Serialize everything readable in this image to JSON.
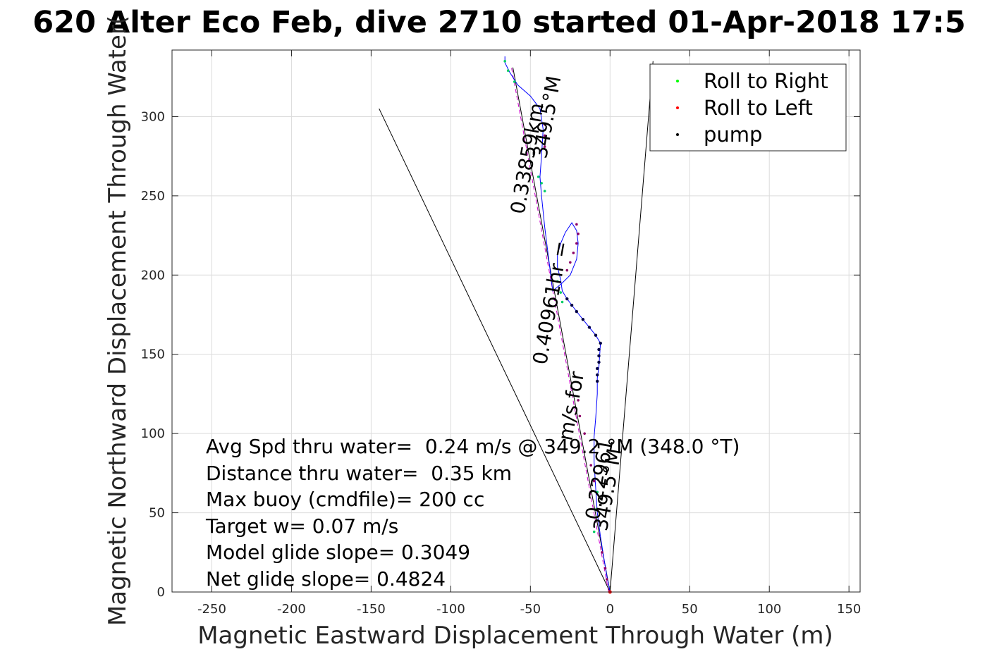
{
  "chart_data": {
    "type": "scatter",
    "title": "620 Alter Eco Feb, dive 2710 started 01-Apr-2018 17:5",
    "xlabel": "Magnetic Eastward Displacement Through Water (m)",
    "ylabel": "Magnetic Northward Displacement Through Water(",
    "xlim": [
      -275,
      157
    ],
    "ylim": [
      0,
      342
    ],
    "xticks": [
      -250,
      -200,
      -150,
      -100,
      -50,
      0,
      50,
      100,
      150
    ],
    "yticks": [
      0,
      50,
      100,
      150,
      200,
      250,
      300
    ],
    "grid": true,
    "legend_position": "top-right",
    "legend": [
      {
        "label": "Roll to Right",
        "color": "#00ff00"
      },
      {
        "label": "Roll to Left",
        "color": "#ff0000"
      },
      {
        "label": "pump",
        "color": "#000000"
      }
    ],
    "track": {
      "color": "#0000ff",
      "x": [
        0,
        -2,
        -4,
        -6,
        -8,
        -9,
        -10,
        -10,
        -9,
        -8,
        -8,
        -7,
        -6,
        -9,
        -13,
        -17,
        -21,
        -24,
        -27,
        -30,
        -31,
        -33,
        -33,
        -31,
        -28,
        -24,
        -21,
        -20,
        -21,
        -25,
        -30,
        -36,
        -41,
        -43,
        -44,
        -43,
        -42,
        -44,
        -50,
        -58,
        -63,
        -66,
        -66
      ],
      "y": [
        0,
        10,
        22,
        35,
        50,
        65,
        82,
        98,
        110,
        125,
        135,
        142,
        157,
        162,
        167,
        172,
        177,
        181,
        185,
        190,
        197,
        205,
        213,
        220,
        227,
        233,
        228,
        220,
        210,
        200,
        195,
        190,
        230,
        250,
        262,
        275,
        292,
        305,
        313,
        320,
        328,
        334,
        338
      ]
    },
    "green_points": [
      [
        -66,
        335
      ],
      [
        -64,
        329
      ],
      [
        -60,
        322
      ],
      [
        -45,
        262
      ],
      [
        -43,
        258
      ],
      [
        -41,
        253
      ],
      [
        -33,
        196
      ],
      [
        -31,
        189
      ],
      [
        -30,
        183
      ],
      [
        -8,
        63
      ],
      [
        -9,
        52
      ],
      [
        -10,
        38
      ]
    ],
    "pump_points": [
      [
        -6,
        157
      ],
      [
        -7,
        153
      ],
      [
        -7,
        149
      ],
      [
        -7,
        145
      ],
      [
        -8,
        141
      ],
      [
        -8,
        137
      ],
      [
        -8,
        133
      ],
      [
        -9,
        162
      ],
      [
        -13,
        167
      ],
      [
        -17,
        172
      ],
      [
        -21,
        177
      ],
      [
        -24,
        181
      ],
      [
        -27,
        185
      ]
    ],
    "magenta_points": [
      [
        -21,
        232
      ],
      [
        -20,
        226
      ],
      [
        -21,
        220
      ],
      [
        -23,
        214
      ],
      [
        -25,
        208
      ],
      [
        -27,
        203
      ],
      [
        -41,
        295
      ],
      [
        -41,
        288
      ],
      [
        -41,
        281
      ],
      [
        -20,
        121
      ],
      [
        -19,
        111
      ],
      [
        -16,
        100
      ],
      [
        -12,
        80
      ],
      [
        -10,
        70
      ],
      [
        -5,
        25
      ],
      [
        -3,
        15
      ],
      [
        -2,
        8
      ]
    ],
    "origin_point": [
      0,
      0
    ],
    "cone_lines": [
      {
        "x": [
          0,
          -145
        ],
        "y": [
          0,
          305
        ]
      },
      {
        "x": [
          0,
          27
        ],
        "y": [
          0,
          335
        ]
      }
    ],
    "mean_line": {
      "x": [
        0,
        -61
      ],
      "y": [
        0,
        331
      ]
    },
    "annotations": [
      {
        "text": "0.33859km",
        "x": -54,
        "y": 238,
        "angle_deg": -80
      },
      {
        "text": "349.5°M",
        "x": -40,
        "y": 273,
        "angle_deg": -80
      },
      {
        "text": "0.40961hr =",
        "x": -40,
        "y": 143,
        "angle_deg": -80
      },
      {
        "text": "m/s for",
        "x": -24,
        "y": 95,
        "angle_deg": -80
      },
      {
        "text": "0.22961",
        "x": -7,
        "y": 45,
        "angle_deg": -80
      },
      {
        "text": "349.5°M",
        "x": -2,
        "y": 38,
        "angle_deg": -80
      }
    ],
    "stats": [
      "Avg Spd thru water=  0.24 m/s @ 349.2 °M (348.0 °T)",
      "Distance thru water=  0.35 km",
      "Max buoy (cmdfile)= 200 cc",
      "Target w= 0.07 m/s",
      "Model glide slope= 0.3049",
      "Net glide slope= 0.4824"
    ]
  }
}
